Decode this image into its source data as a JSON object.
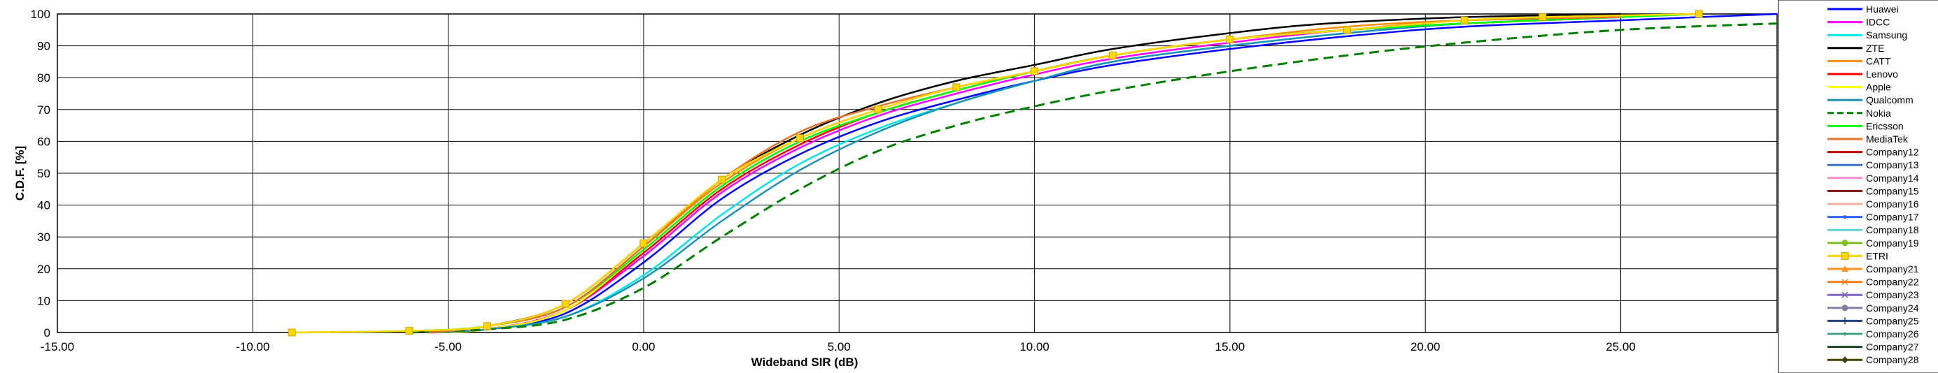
{
  "chart_data": {
    "type": "line",
    "title": "",
    "xlabel": "Wideband SIR (dB)",
    "ylabel": "C.D.F. [%]",
    "xlim": [
      -15,
      29
    ],
    "ylim": [
      0,
      100
    ],
    "x_ticks": [
      -15,
      -10,
      -5,
      0,
      5,
      10,
      15,
      20,
      25
    ],
    "x_tick_labels": [
      "-15.00",
      "-10.00",
      "-5.00",
      "0.00",
      "5.00",
      "10.00",
      "15.00",
      "20.00",
      "25.00"
    ],
    "y_ticks": [
      0,
      10,
      20,
      30,
      40,
      50,
      60,
      70,
      80,
      90,
      100
    ],
    "y_tick_labels": [
      "0",
      "10",
      "20",
      "30",
      "40",
      "50",
      "60",
      "70",
      "80",
      "90",
      "100"
    ],
    "grid": true,
    "legend_position": "right",
    "series": [
      {
        "name": "Huawei",
        "color": "#0000ff",
        "dash": "",
        "marker": "",
        "x": [
          -5.5,
          -4,
          -2,
          0,
          2,
          4,
          6,
          8,
          10,
          12,
          15,
          18,
          21,
          25,
          29
        ],
        "y": [
          0,
          1,
          6,
          22,
          42,
          56,
          66,
          73,
          79,
          84,
          89,
          93,
          96,
          98,
          100
        ]
      },
      {
        "name": "IDCC",
        "color": "#ff00ff",
        "dash": "",
        "marker": "",
        "x": [
          -5.5,
          -4,
          -2,
          0,
          2,
          4,
          6,
          8,
          10,
          12,
          15,
          18,
          21,
          25
        ],
        "y": [
          0,
          1,
          7,
          24,
          44,
          58,
          68,
          75,
          81,
          86,
          91,
          95,
          97,
          99
        ]
      },
      {
        "name": "Samsung",
        "color": "#00e5ee",
        "dash": "",
        "marker": "",
        "x": [
          -5.5,
          -4,
          -2,
          0,
          2,
          4,
          6,
          8,
          10,
          12,
          15,
          18,
          21,
          25
        ],
        "y": [
          0,
          1,
          5,
          18,
          37,
          53,
          64,
          72,
          79,
          85,
          90,
          94,
          97,
          99
        ]
      },
      {
        "name": "ZTE",
        "color": "#000000",
        "dash": "",
        "marker": "",
        "x": [
          -6,
          -4,
          -2,
          0,
          2,
          4,
          6,
          8,
          10,
          12,
          15,
          17.5,
          21,
          25
        ],
        "y": [
          0,
          2,
          9,
          28,
          48,
          62,
          72,
          79,
          84,
          89,
          94,
          97,
          99,
          100
        ]
      },
      {
        "name": "CATT",
        "color": "#ff8c00",
        "dash": "",
        "marker": "",
        "x": [
          -5.5,
          -4,
          -2,
          0,
          2,
          4,
          6,
          8,
          10,
          12,
          15,
          18,
          21,
          25
        ],
        "y": [
          0,
          2,
          8,
          27,
          47,
          61,
          70,
          77,
          82,
          87,
          92,
          96,
          98,
          99
        ]
      },
      {
        "name": "Lenovo",
        "color": "#ff0000",
        "dash": "",
        "marker": "",
        "x": [
          -5.5,
          -4,
          -2,
          0,
          2,
          4,
          6,
          8,
          10,
          12,
          15,
          18,
          21,
          25
        ],
        "y": [
          0,
          1,
          7,
          25,
          45,
          59,
          69,
          76,
          82,
          87,
          92,
          95,
          97,
          99
        ]
      },
      {
        "name": "Apple",
        "color": "#ffff00",
        "dash": "",
        "marker": "",
        "x": [
          -5.5,
          -4,
          -2,
          0,
          2,
          4,
          6,
          8,
          10,
          12,
          15,
          18,
          21,
          25
        ],
        "y": [
          0,
          1,
          7,
          26,
          46,
          60,
          69,
          76,
          82,
          87,
          92,
          95,
          97,
          99
        ]
      },
      {
        "name": "Qualcomm",
        "color": "#1e90b4",
        "dash": "",
        "marker": "",
        "x": [
          -5.5,
          -4,
          -2,
          0,
          2,
          4,
          6,
          8,
          10,
          12,
          15,
          18,
          21,
          25
        ],
        "y": [
          0,
          1,
          5,
          17,
          35,
          51,
          63,
          72,
          79,
          85,
          90,
          94,
          97,
          99
        ]
      },
      {
        "name": "Nokia",
        "color": "#008000",
        "dash": "14,8",
        "marker": "",
        "x": [
          -6,
          -4,
          -2,
          0,
          2,
          4,
          6,
          8,
          10,
          12,
          15,
          18,
          21,
          25,
          29
        ],
        "y": [
          0,
          1,
          4,
          14,
          30,
          45,
          57,
          65,
          71,
          76,
          82,
          87,
          91,
          95,
          97
        ]
      },
      {
        "name": "Ericsson",
        "color": "#00ff00",
        "dash": "",
        "marker": "",
        "x": [
          -9,
          -6,
          -4,
          -2,
          0,
          2,
          4,
          6,
          8,
          10,
          12,
          15,
          18,
          21,
          25,
          27
        ],
        "y": [
          0,
          0.5,
          2,
          8,
          26,
          46,
          60,
          69,
          76,
          82,
          87,
          92,
          95,
          97,
          99,
          100
        ]
      },
      {
        "name": "MediaTek",
        "color": "#e8742c",
        "dash": "",
        "marker": "",
        "x": [
          -5.5,
          -4,
          -2,
          0,
          2,
          4,
          6,
          8,
          10,
          12,
          15,
          18,
          21,
          25
        ],
        "y": [
          0,
          2,
          8,
          27,
          48,
          63,
          71,
          77,
          82,
          87,
          92,
          95,
          98,
          99
        ]
      },
      {
        "name": "Company12",
        "color": "#c00000",
        "dash": "",
        "marker": ""
      },
      {
        "name": "Company13",
        "color": "#3a6ec8",
        "dash": "",
        "marker": ""
      },
      {
        "name": "Company14",
        "color": "#ff8cc8",
        "dash": "",
        "marker": ""
      },
      {
        "name": "Company15",
        "color": "#800000",
        "dash": "",
        "marker": ""
      },
      {
        "name": "Company16",
        "color": "#f0b0a0",
        "dash": "",
        "marker": ""
      },
      {
        "name": "Company17",
        "color": "#3060ff",
        "dash": "",
        "marker": "dot"
      },
      {
        "name": "Company18",
        "color": "#60d0d0",
        "dash": "",
        "marker": ""
      },
      {
        "name": "Company19",
        "color": "#80c020",
        "dash": "",
        "marker": "circle"
      },
      {
        "name": "ETRI",
        "color": "#ffd700",
        "dash": "",
        "marker": "square",
        "x": [
          -9,
          -6,
          -4,
          -2,
          0,
          2,
          4,
          6,
          8,
          10,
          12,
          15,
          18,
          21,
          23,
          27
        ],
        "y": [
          0,
          0.5,
          2,
          9,
          28,
          48,
          61,
          70,
          77,
          82,
          87,
          92,
          95,
          98,
          99,
          100
        ]
      },
      {
        "name": "Company21",
        "color": "#ff9020",
        "dash": "",
        "marker": "triangle"
      },
      {
        "name": "Company22",
        "color": "#ff7f20",
        "dash": "",
        "marker": "x"
      },
      {
        "name": "Company23",
        "color": "#8060c0",
        "dash": "",
        "marker": "x"
      },
      {
        "name": "Company24",
        "color": "#8080a0",
        "dash": "",
        "marker": "circle"
      },
      {
        "name": "Company25",
        "color": "#204080",
        "dash": "",
        "marker": "plus"
      },
      {
        "name": "Company26",
        "color": "#40a080",
        "dash": "",
        "marker": "dot"
      },
      {
        "name": "Company27",
        "color": "#204020",
        "dash": "",
        "marker": ""
      },
      {
        "name": "Company28",
        "color": "#404000",
        "dash": "",
        "marker": "diamond"
      }
    ]
  }
}
